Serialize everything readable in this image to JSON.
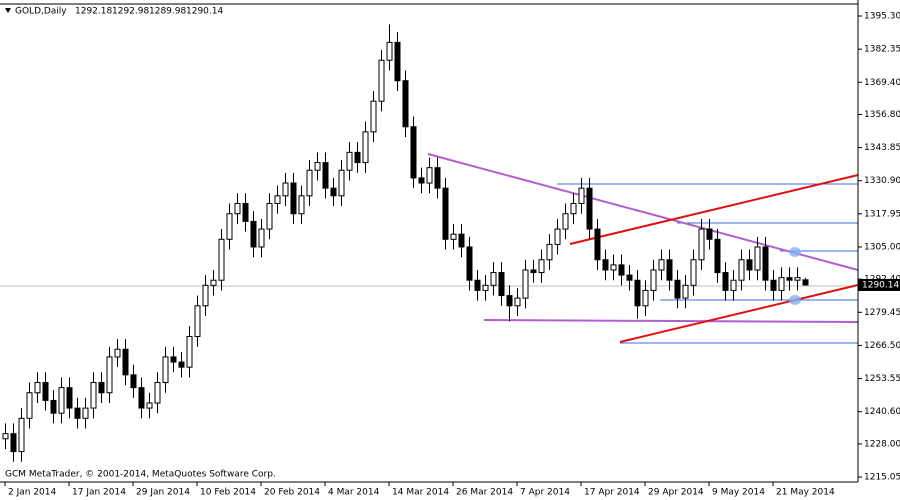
{
  "chart_data": {
    "type": "candlestick",
    "symbol": "GOLD,Daily",
    "footer": "GCM MetaTrader, © 2001-2014, MetaQuotes Software Corp.",
    "up_color": "#ffffff",
    "down_color": "#000000",
    "categories": [
      "2 Jan 2014",
      null,
      null,
      null,
      null,
      null,
      null,
      null,
      "17 Jan 2014",
      null,
      null,
      null,
      null,
      null,
      null,
      null,
      "29 Jan 2014",
      null,
      null,
      null,
      null,
      null,
      null,
      null,
      "10 Feb 2014",
      null,
      null,
      null,
      null,
      null,
      null,
      null,
      "20 Feb 2014",
      null,
      null,
      null,
      null,
      null,
      null,
      null,
      "4 Mar 2014",
      null,
      null,
      null,
      null,
      null,
      null,
      null,
      "14 Mar 2014",
      null,
      null,
      null,
      null,
      null,
      null,
      null,
      "26 Mar 2014",
      null,
      null,
      null,
      null,
      null,
      null,
      null,
      "7 Apr 2014",
      null,
      null,
      null,
      null,
      null,
      null,
      null,
      "17 Apr 2014",
      null,
      null,
      null,
      null,
      null,
      null,
      null,
      "29 Apr 2014",
      null,
      null,
      null,
      null,
      null,
      null,
      null,
      "9 May 2014",
      null,
      null,
      null,
      null,
      null,
      null,
      null,
      "21 May 2014",
      null,
      null,
      null,
      null
    ],
    "open": [
      1230,
      1232,
      1225,
      1238,
      1248,
      1252,
      1245,
      1240,
      1250,
      1242,
      1238,
      1242,
      1252,
      1248,
      1262,
      1265,
      1255,
      1250,
      1242,
      1244,
      1252,
      1262,
      1260,
      1258,
      1270,
      1282,
      1290,
      1292,
      1308,
      1318,
      1322,
      1315,
      1305,
      1312,
      1322,
      1325,
      1330,
      1318,
      1325,
      1335,
      1338,
      1328,
      1325,
      1335,
      1342,
      1338,
      1350,
      1362,
      1378,
      1385,
      1370,
      1352,
      1332,
      1330,
      1336,
      1328,
      1308,
      1310,
      1305,
      1292,
      1288,
      1290,
      1295,
      1286,
      1282,
      1285,
      1296,
      1295,
      1300,
      1306,
      1312,
      1318,
      1322,
      1328,
      1312,
      1300,
      1296,
      1298,
      1294,
      1292,
      1282,
      1288,
      1296,
      1300,
      1292,
      1285,
      1290,
      1300,
      1312,
      1308,
      1295,
      1288,
      1292,
      1300,
      1296,
      1305,
      1292,
      1288,
      1293,
      1292,
      1292.18
    ],
    "high": [
      1236,
      1236,
      1242,
      1252,
      1256,
      1256,
      1249,
      1254,
      1254,
      1246,
      1246,
      1256,
      1256,
      1266,
      1269,
      1269,
      1259,
      1254,
      1248,
      1256,
      1266,
      1266,
      1264,
      1274,
      1286,
      1294,
      1296,
      1312,
      1322,
      1326,
      1326,
      1319,
      1316,
      1326,
      1329,
      1334,
      1334,
      1329,
      1339,
      1342,
      1342,
      1332,
      1339,
      1346,
      1346,
      1354,
      1366,
      1382,
      1392,
      1389,
      1374,
      1356,
      1336,
      1340,
      1340,
      1332,
      1314,
      1314,
      1309,
      1296,
      1294,
      1299,
      1299,
      1290,
      1289,
      1300,
      1300,
      1304,
      1310,
      1316,
      1322,
      1326,
      1332,
      1332,
      1316,
      1304,
      1302,
      1302,
      1298,
      1296,
      1292,
      1300,
      1304,
      1304,
      1296,
      1294,
      1304,
      1316,
      1316,
      1312,
      1299,
      1296,
      1304,
      1304,
      1309,
      1309,
      1296,
      1297,
      1297,
      1297,
      1292.98
    ],
    "low": [
      1226,
      1221,
      1221,
      1234,
      1244,
      1241,
      1236,
      1236,
      1238,
      1234,
      1234,
      1238,
      1244,
      1244,
      1258,
      1251,
      1246,
      1238,
      1238,
      1240,
      1248,
      1256,
      1254,
      1254,
      1266,
      1278,
      1286,
      1288,
      1304,
      1314,
      1311,
      1301,
      1301,
      1308,
      1318,
      1321,
      1314,
      1314,
      1321,
      1331,
      1324,
      1321,
      1321,
      1331,
      1334,
      1334,
      1346,
      1358,
      1374,
      1366,
      1348,
      1328,
      1326,
      1326,
      1324,
      1304,
      1304,
      1301,
      1288,
      1284,
      1284,
      1286,
      1282,
      1276,
      1278,
      1281,
      1291,
      1291,
      1296,
      1302,
      1308,
      1314,
      1318,
      1308,
      1296,
      1292,
      1292,
      1290,
      1288,
      1277,
      1278,
      1284,
      1292,
      1288,
      1281,
      1281,
      1286,
      1296,
      1304,
      1291,
      1284,
      1284,
      1288,
      1292,
      1292,
      1288,
      1284,
      1284,
      1288,
      1288,
      1289.98
    ],
    "close": [
      1232,
      1225,
      1238,
      1248,
      1252,
      1245,
      1240,
      1250,
      1242,
      1238,
      1242,
      1252,
      1248,
      1262,
      1265,
      1255,
      1250,
      1242,
      1244,
      1252,
      1262,
      1260,
      1258,
      1270,
      1282,
      1290,
      1292,
      1308,
      1318,
      1322,
      1315,
      1305,
      1312,
      1322,
      1325,
      1330,
      1318,
      1325,
      1335,
      1338,
      1328,
      1325,
      1335,
      1342,
      1338,
      1350,
      1362,
      1378,
      1385,
      1370,
      1352,
      1332,
      1330,
      1336,
      1328,
      1308,
      1310,
      1305,
      1292,
      1288,
      1290,
      1295,
      1286,
      1282,
      1285,
      1296,
      1295,
      1300,
      1306,
      1312,
      1318,
      1322,
      1328,
      1312,
      1300,
      1296,
      1298,
      1294,
      1292,
      1282,
      1288,
      1296,
      1300,
      1292,
      1285,
      1290,
      1300,
      1312,
      1308,
      1295,
      1288,
      1292,
      1300,
      1296,
      1305,
      1292,
      1288,
      1293,
      1292,
      1293,
      1290.14
    ],
    "ylim": [
      1213.1,
      1400
    ],
    "yticks": [
      {
        "value": 1395.3,
        "label": "1395.30"
      },
      {
        "value": 1382.35,
        "label": "1382.35"
      },
      {
        "value": 1369.4,
        "label": "1369.40"
      },
      {
        "value": 1356.8,
        "label": "1356.80"
      },
      {
        "value": 1343.85,
        "label": "1343.85"
      },
      {
        "value": 1330.9,
        "label": "1330.90"
      },
      {
        "value": 1317.95,
        "label": "1317.95"
      },
      {
        "value": 1305.0,
        "label": "1305.00"
      },
      {
        "value": 1292.4,
        "label": "1292.40"
      },
      {
        "value": 1279.45,
        "label": "1279.45"
      },
      {
        "value": 1266.5,
        "label": "1266.50"
      },
      {
        "value": 1253.55,
        "label": "1253.55"
      },
      {
        "value": 1240.6,
        "label": "1240.60"
      },
      {
        "value": 1228.0,
        "label": "1228.00"
      },
      {
        "value": 1215.05,
        "label": "1215.05"
      }
    ]
  }
}
